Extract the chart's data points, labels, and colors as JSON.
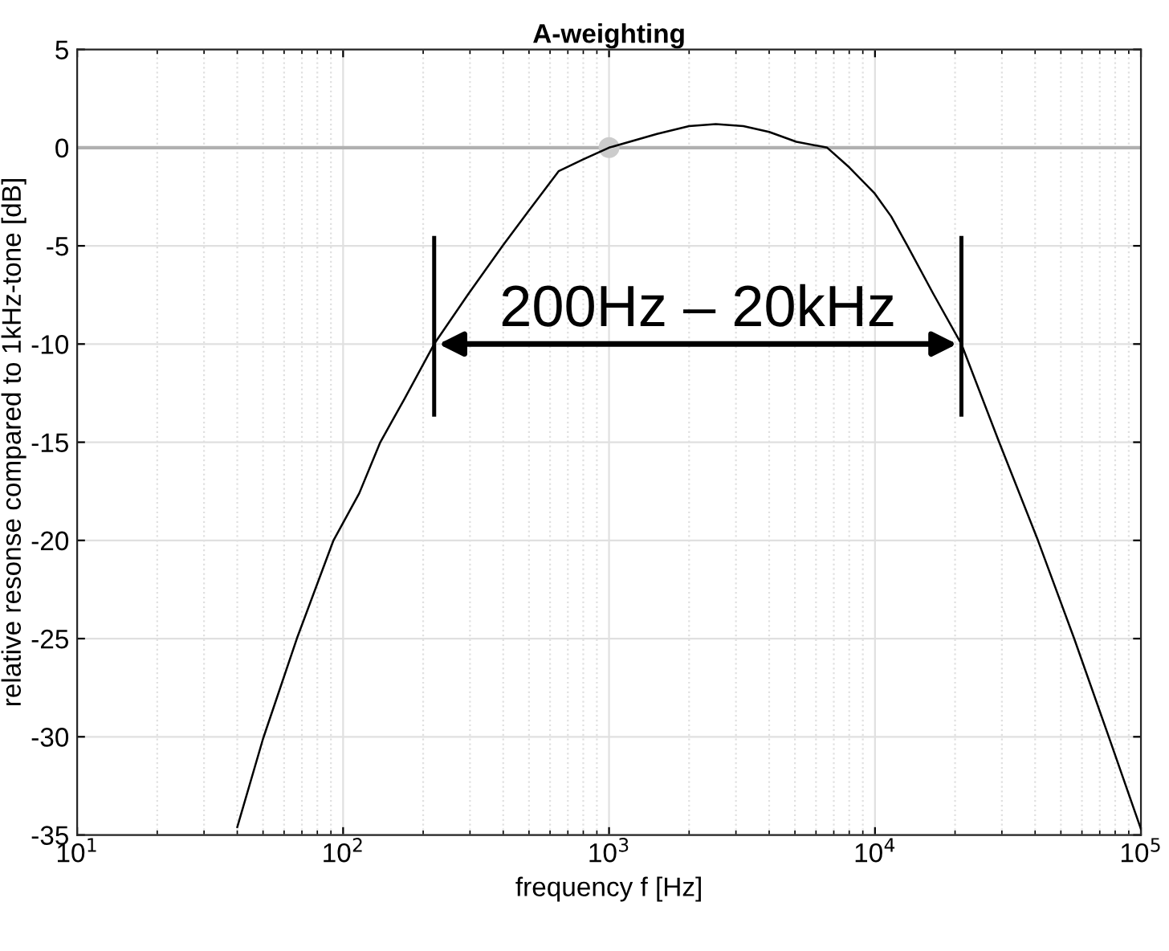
{
  "chart_data": {
    "type": "line",
    "title": "A-weighting",
    "xlabel": "frequency f [Hz]",
    "ylabel": "relative resonse compared to 1kHz-tone [dB]",
    "log": "x",
    "grid": true,
    "legend": false,
    "marker": "none",
    "line_style": "solid",
    "xlim": [
      10,
      100000
    ],
    "ylim": [
      -35,
      5
    ],
    "xticks": [
      {
        "value": 10,
        "label": "10$^{1}$"
      },
      {
        "value": 100,
        "label": "10$^{2}$"
      },
      {
        "value": 1000,
        "label": "10$^{3}$"
      },
      {
        "value": 10000,
        "label": "10$^{4}$"
      },
      {
        "value": 100000,
        "label": "10$^{5}$"
      }
    ],
    "yticks": [
      -35,
      -30,
      -25,
      -20,
      -15,
      -10,
      -5,
      0,
      5
    ],
    "series": [
      {
        "color": "#000000",
        "x": [
          40,
          50,
          67,
          92,
          115,
          138,
          170,
          220,
          294,
          398,
          500,
          646,
          800,
          1000,
          1514,
          2000,
          2520,
          3200,
          4000,
          5060,
          6610,
          8000,
          9930,
          11500,
          13250,
          16500,
          21130,
          29300,
          41000,
          56100,
          75700,
          100000
        ],
        "values": [
          -34.6,
          -30.1,
          -25,
          -20,
          -17.6,
          -15,
          -12.8,
          -10,
          -7.5,
          -5,
          -3.2,
          -1.2,
          -0.6,
          0,
          0.7,
          1.1,
          1.2,
          1.1,
          0.8,
          0.3,
          0,
          -1,
          -2.3,
          -3.5,
          -5,
          -7.4,
          -10,
          -15,
          -20,
          -25,
          -30,
          -34.7
        ]
      },
      {
        "type": "scatter",
        "color": "#cccccc",
        "marker": "circle",
        "x": [
          1000
        ],
        "values": [
          0
        ]
      }
    ],
    "ref_lines": [
      {
        "axis": "y",
        "value": 0,
        "color": "#b0b0b0"
      }
    ],
    "annotations": [
      {
        "text": "200Hz – 20kHz",
        "x": 220,
        "y": -10
      }
    ]
  }
}
